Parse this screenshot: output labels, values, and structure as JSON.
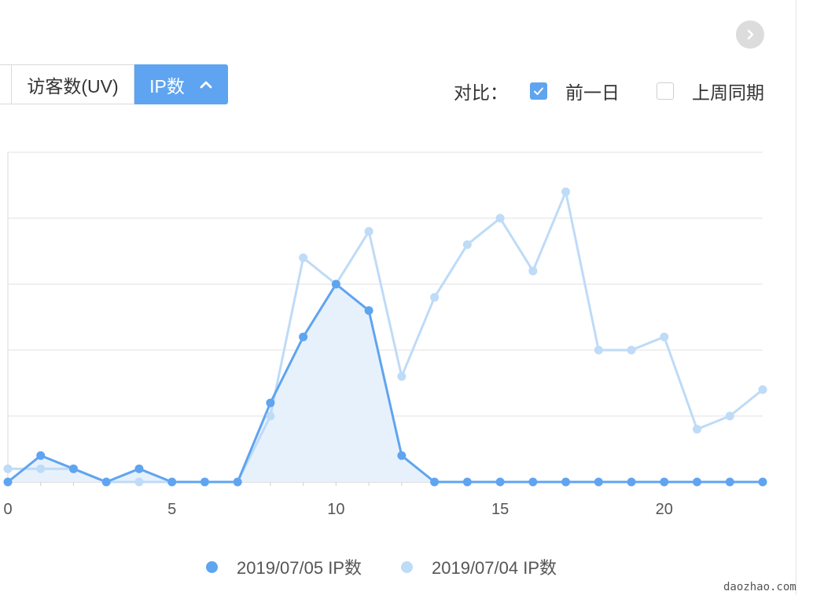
{
  "tabs": {
    "uv_label": "访客数(UV)",
    "ip_label": "IP数"
  },
  "compare": {
    "label": "对比：",
    "options": [
      {
        "label": "前一日",
        "checked": true
      },
      {
        "label": "上周同期",
        "checked": false
      }
    ]
  },
  "colors": {
    "accent": "#5fa4f0",
    "series_current": "#5fa4f0",
    "series_previous": "#bedbf7",
    "area_fill": "#e7f1fc"
  },
  "icons": {
    "nav": "chevron-right-icon",
    "tab_collapse": "chevron-up-icon",
    "checkbox": "checkmark-icon"
  },
  "chart_data": {
    "type": "line",
    "x": [
      0,
      1,
      2,
      3,
      4,
      5,
      6,
      7,
      8,
      9,
      10,
      11,
      12,
      13,
      14,
      15,
      16,
      17,
      18,
      19,
      20,
      21,
      22,
      23
    ],
    "xticks": [
      0,
      5,
      10,
      15,
      20
    ],
    "ylim": [
      0,
      25
    ],
    "grid": true,
    "legend_position": "bottom",
    "series": [
      {
        "name": "2019/07/05 IP数",
        "values": [
          0,
          2,
          1,
          0,
          1,
          0,
          0,
          0,
          6,
          11,
          15,
          13,
          2,
          0,
          0,
          0,
          0,
          0,
          0,
          0,
          0,
          0,
          0,
          0
        ],
        "area": true
      },
      {
        "name": "2019/07/04 IP数",
        "values": [
          1,
          1,
          1,
          0,
          0,
          0,
          0,
          0,
          5,
          17,
          15,
          19,
          8,
          14,
          18,
          20,
          16,
          22,
          10,
          10,
          11,
          4,
          5,
          7
        ],
        "area": false
      }
    ]
  },
  "watermark": "daozhao.com"
}
